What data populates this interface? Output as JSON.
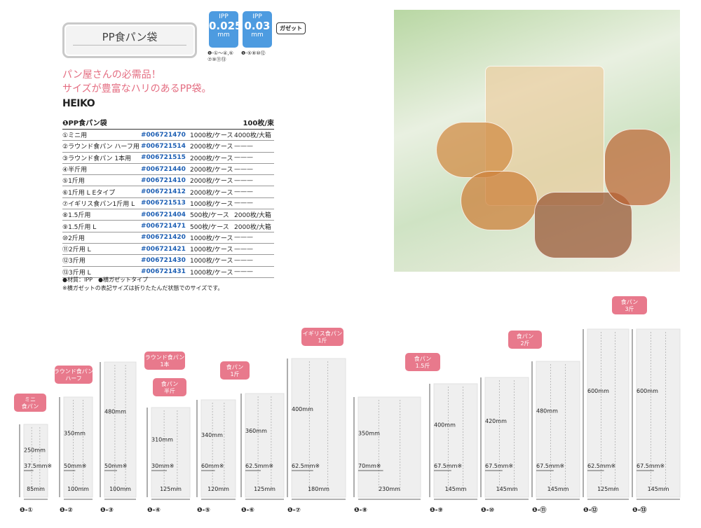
{
  "header": {
    "title": "PP食パン袋",
    "ipp_badges": [
      {
        "material": "IPP",
        "thickness": "0.025",
        "unit": "mm",
        "note": "❶-①～④,⑥ ⑦⑨⑪⑬"
      },
      {
        "material": "IPP",
        "thickness": "0.03",
        "unit": "mm",
        "note": "❶-⑤⑧⑩⑫"
      }
    ],
    "gusset": "ガゼット"
  },
  "slogan": [
    "パン屋さんの必需品！",
    "サイズが豊富なハリのあるPP袋。"
  ],
  "brand": "HEIKO",
  "product": {
    "name": "❶PP食パン袋",
    "unit": "100枚/束",
    "rows": [
      {
        "name": "①ミニ用",
        "code": "#006721470",
        "pack": "1000枚/ケース",
        "box": "4000枚/大箱"
      },
      {
        "name": "②ラウンド食パン ハーフ用",
        "code": "#006721514",
        "pack": "2000枚/ケース",
        "box": "———"
      },
      {
        "name": "③ラウンド食パン 1本用",
        "code": "#006721515",
        "pack": "2000枚/ケース",
        "box": "———"
      },
      {
        "name": "④半斤用",
        "code": "#006721440",
        "pack": "2000枚/ケース",
        "box": "———"
      },
      {
        "name": "⑤1斤用",
        "code": "#006721410",
        "pack": "2000枚/ケース",
        "box": "———"
      },
      {
        "name": "⑥1斤用 L Eタイプ",
        "code": "#006721412",
        "pack": "2000枚/ケース",
        "box": "———"
      },
      {
        "name": "⑦イギリス食パン1斤用 L",
        "code": "#006721513",
        "pack": "1000枚/ケース",
        "box": "———"
      },
      {
        "name": "⑧1.5斤用",
        "code": "#006721404",
        "pack": "500枚/ケース",
        "box": "2000枚/大箱"
      },
      {
        "name": "⑨1.5斤用 L",
        "code": "#006721471",
        "pack": "500枚/ケース",
        "box": "2000枚/大箱"
      },
      {
        "name": "⑩2斤用",
        "code": "#006721420",
        "pack": "1000枚/ケース",
        "box": "———"
      },
      {
        "name": "⑪2斤用 L",
        "code": "#006721421",
        "pack": "1000枚/ケース",
        "box": "———"
      },
      {
        "name": "⑫3斤用",
        "code": "#006721430",
        "pack": "1000枚/ケース",
        "box": "———"
      },
      {
        "name": "⑬3斤用 L",
        "code": "#006721431",
        "pack": "1000枚/ケース",
        "box": "———"
      }
    ],
    "notes": [
      "●材質：IPP　●横ガゼットタイプ",
      "※横ガゼットの表記サイズは折りたたんだ状態でのサイズです。"
    ]
  },
  "bags": [
    {
      "id": "❶-①",
      "width": "85mm",
      "length": "250mm",
      "gusset": "37.5mm※",
      "label": "ミニ 食パン"
    },
    {
      "id": "❶-②",
      "width": "100mm",
      "length": "350mm",
      "gusset": "50mm※",
      "label": "ラウンド食パン ハーフ"
    },
    {
      "id": "❶-③",
      "width": "100mm",
      "length": "480mm",
      "gusset": "50mm※",
      "label": "ラウンド食パン 1本"
    },
    {
      "id": "❶-④",
      "width": "125mm",
      "length": "310mm",
      "gusset": "30mm※",
      "label": "食パン 半斤"
    },
    {
      "id": "❶-⑤",
      "width": "120mm",
      "length": "340mm",
      "gusset": "60mm※",
      "label": "食パン 1斤"
    },
    {
      "id": "❶-⑥",
      "width": "125mm",
      "length": "360mm",
      "gusset": "62.5mm※",
      "label": ""
    },
    {
      "id": "❶-⑦",
      "width": "180mm",
      "length": "400mm",
      "gusset": "62.5mm※",
      "label": "イギリス食パン 1斤"
    },
    {
      "id": "❶-⑧",
      "width": "230mm",
      "length": "350mm",
      "gusset": "70mm※",
      "label": ""
    },
    {
      "id": "❶-⑨",
      "width": "145mm",
      "length": "400mm",
      "gusset": "67.5mm※",
      "label": "食パン 1.5斤"
    },
    {
      "id": "❶-⑩",
      "width": "145mm",
      "length": "420mm",
      "gusset": "67.5mm※",
      "label": ""
    },
    {
      "id": "❶-⑪",
      "width": "145mm",
      "length": "480mm",
      "gusset": "67.5mm※",
      "label": "食パン 2斤"
    },
    {
      "id": "❶-⑫",
      "width": "125mm",
      "length": "600mm",
      "gusset": "62.5mm※",
      "label": ""
    },
    {
      "id": "❶-⑬",
      "width": "145mm",
      "length": "600mm",
      "gusset": "67.5mm※",
      "label": "食パン 3斤"
    }
  ],
  "colors": {
    "accent": "#e46e82",
    "code": "#1d5fb4",
    "ipp": "#4d9be0",
    "tag": "#e8798c"
  }
}
